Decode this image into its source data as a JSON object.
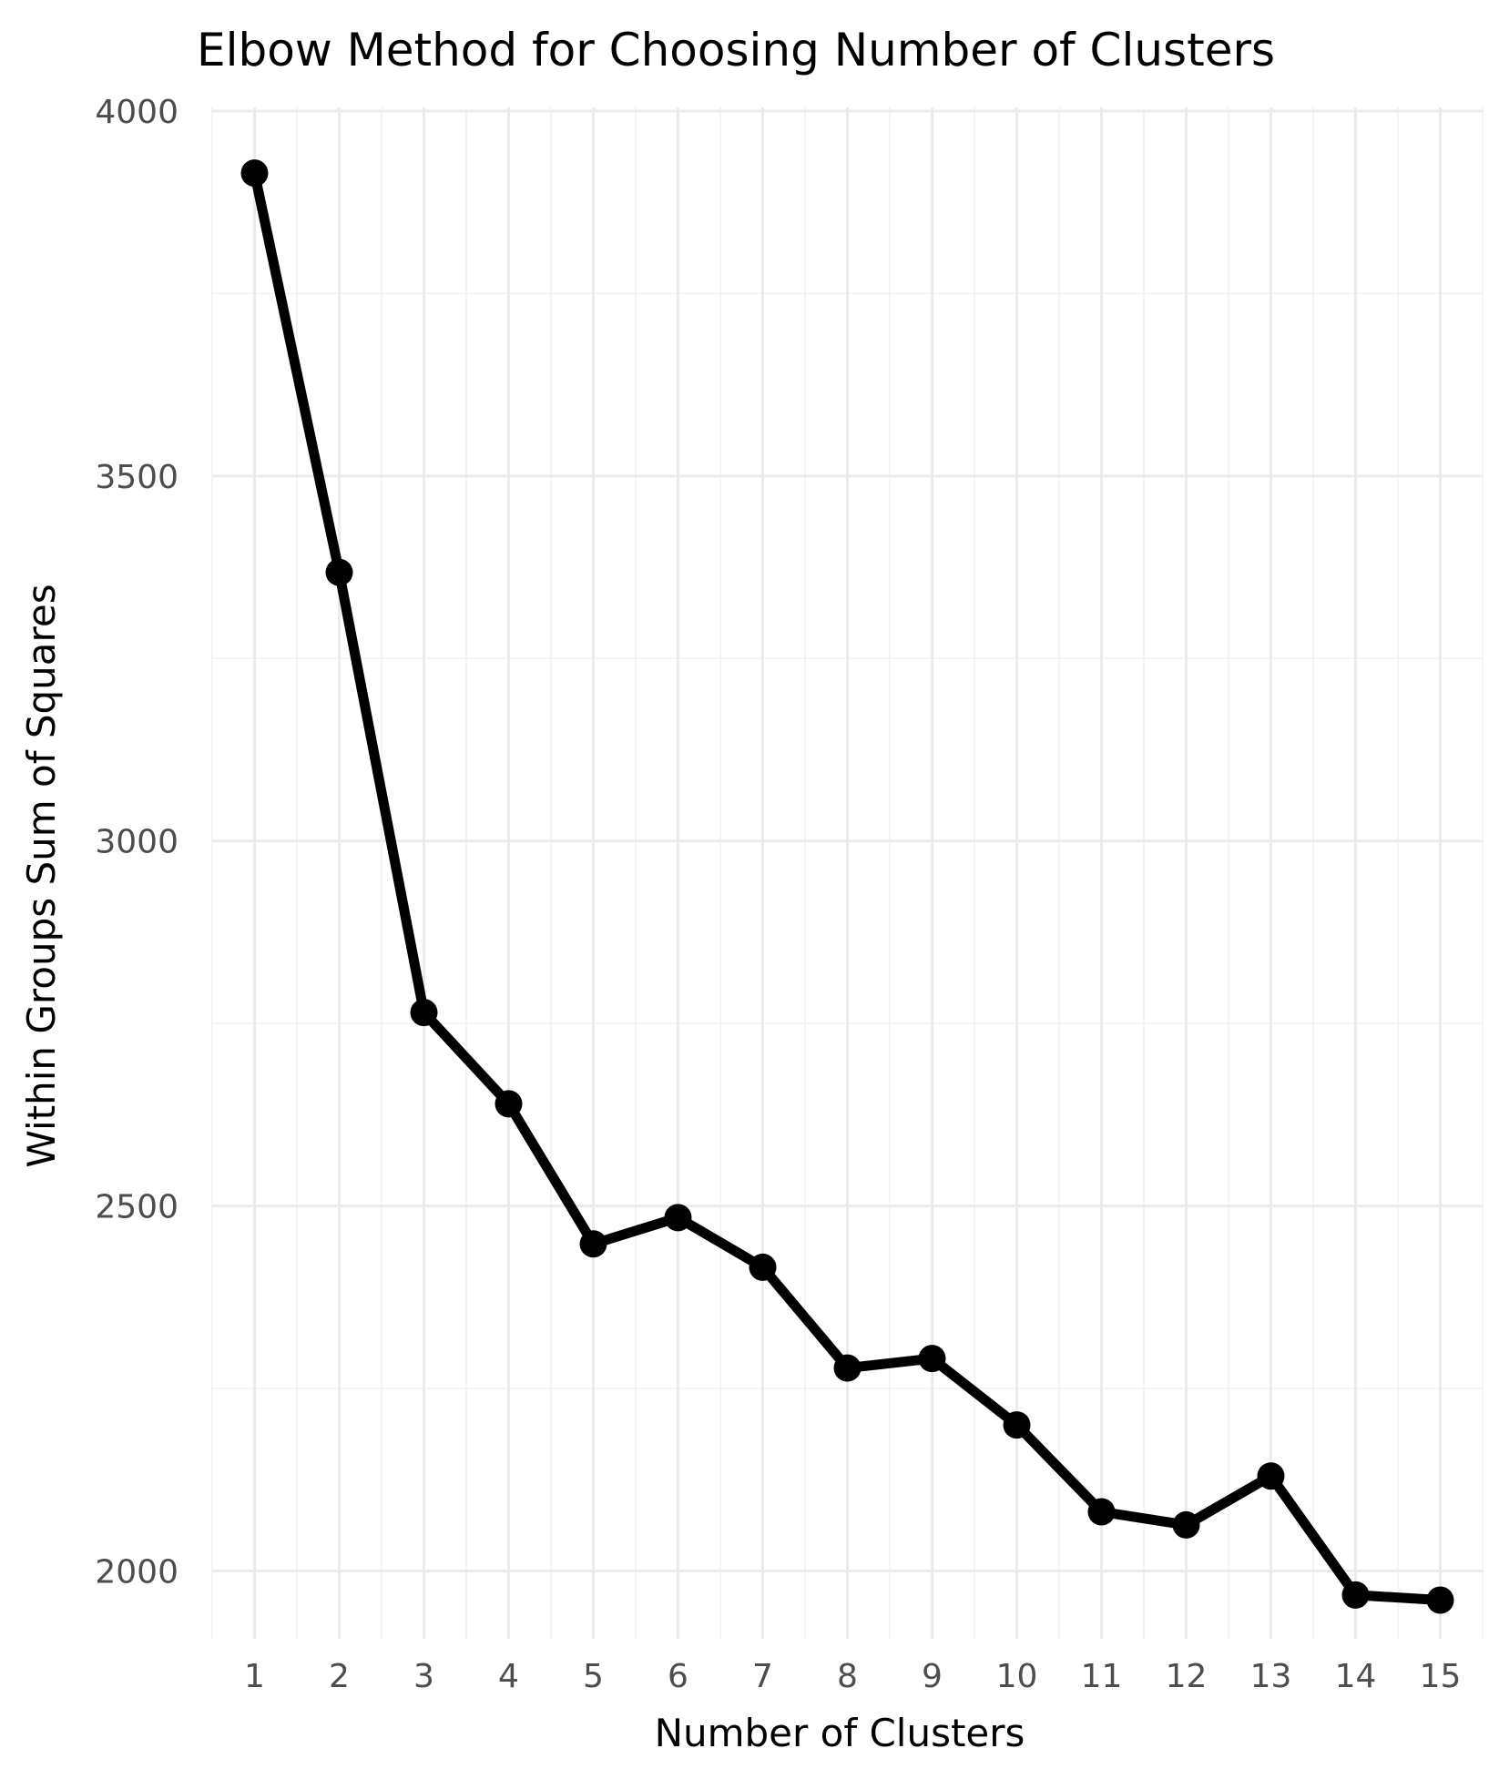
{
  "chart_data": {
    "type": "line",
    "title": "Elbow Method for Choosing Number of Clusters",
    "xlabel": "Number of Clusters",
    "ylabel": "Within Groups Sum of Squares",
    "x": [
      1,
      2,
      3,
      4,
      5,
      6,
      7,
      8,
      9,
      10,
      11,
      12,
      13,
      14,
      15
    ],
    "series": [
      {
        "values": [
          3915,
          3368,
          2765,
          2640,
          2448,
          2484,
          2416,
          2278,
          2291,
          2200,
          2081,
          2063,
          2130,
          1967,
          1960
        ],
        "color": "#000000"
      }
    ],
    "x_ticks": [
      "1",
      "2",
      "3",
      "4",
      "5",
      "6",
      "7",
      "8",
      "9",
      "10",
      "11",
      "12",
      "13",
      "14",
      "15"
    ],
    "y_ticks": [
      "2000",
      "2500",
      "3000",
      "3500",
      "4000"
    ],
    "xlim": [
      0.5,
      15.5
    ],
    "ylim": [
      1907,
      4005
    ],
    "grid": true,
    "legend": "none"
  }
}
